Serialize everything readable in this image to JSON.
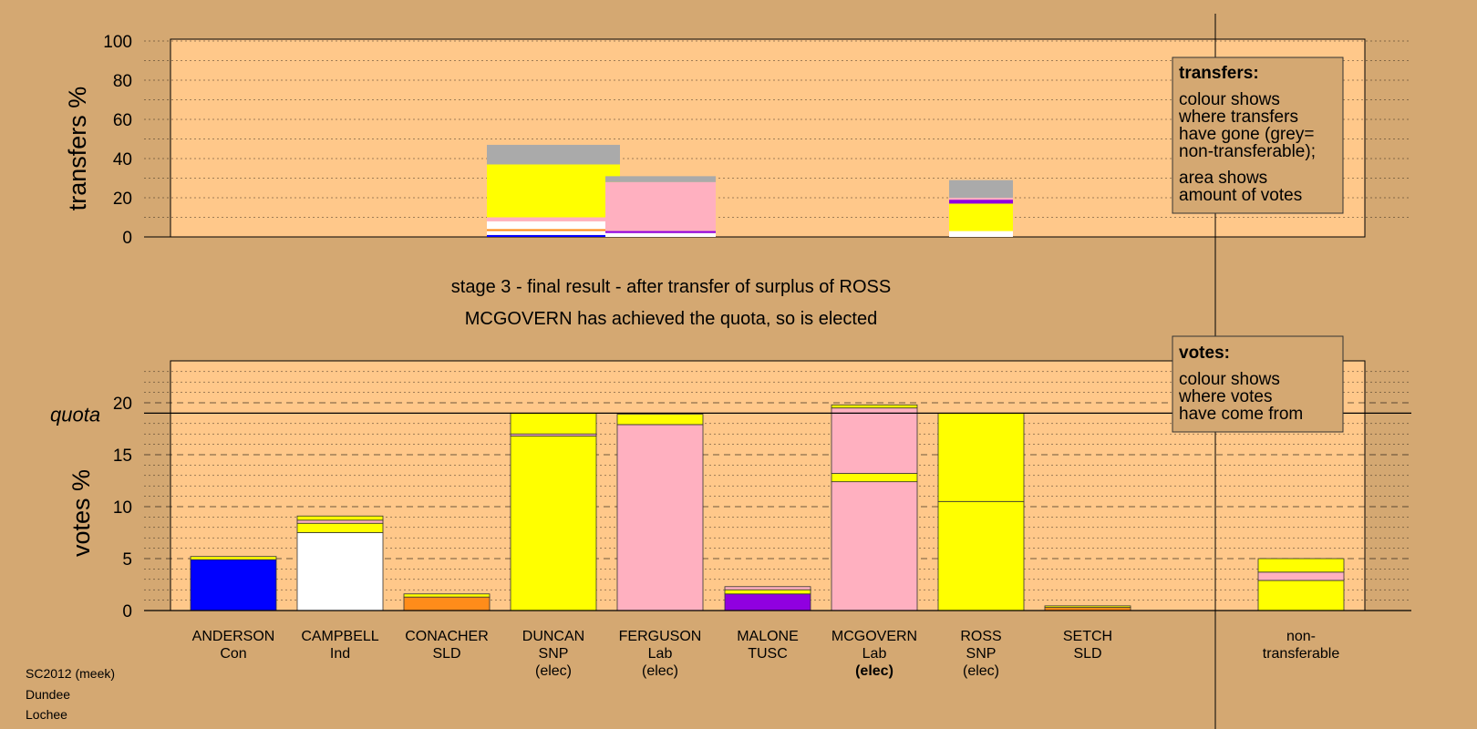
{
  "chart_data": [
    {
      "type": "bar",
      "stacked": true,
      "ylabel": "transfers %",
      "ylim": [
        0,
        100
      ],
      "yticks": [
        0,
        20,
        40,
        60,
        80,
        100
      ],
      "grid": true,
      "bars": [
        {
          "x_between": [
            "DUNCAN",
            "FERGUSON"
          ],
          "segments": [
            {
              "color": "#0000ff",
              "from": 0,
              "to": 1
            },
            {
              "color": "#ffffff",
              "from": 1,
              "to": 3
            },
            {
              "color": "#ff8c1a",
              "from": 3,
              "to": 4
            },
            {
              "color": "#ffffff",
              "from": 4,
              "to": 8
            },
            {
              "color": "#ffb0c0",
              "from": 8,
              "to": 10
            },
            {
              "color": "#ffff00",
              "from": 10,
              "to": 37
            },
            {
              "color": "#aaaaaa",
              "from": 37,
              "to": 47
            }
          ]
        },
        {
          "x_between": [
            "FERGUSON",
            "MCGOVERN"
          ],
          "segments": [
            {
              "color": "#ffffff",
              "from": 0,
              "to": 2
            },
            {
              "color": "#9000e0",
              "from": 2,
              "to": 3
            },
            {
              "color": "#ffb0c0",
              "from": 3,
              "to": 28
            },
            {
              "color": "#aaaaaa",
              "from": 28,
              "to": 31
            }
          ]
        },
        {
          "x": "ROSS",
          "segments": [
            {
              "color": "#ffffff",
              "from": 0,
              "to": 3
            },
            {
              "color": "#ffff00",
              "from": 3,
              "to": 17
            },
            {
              "color": "#9000e0",
              "from": 17,
              "to": 19
            },
            {
              "color": "#ffb0c0",
              "from": 19,
              "to": 20
            },
            {
              "color": "#aaaaaa",
              "from": 20,
              "to": 29
            }
          ]
        }
      ]
    },
    {
      "type": "bar",
      "stacked": true,
      "ylabel": "votes %",
      "ylim": [
        0,
        24
      ],
      "yticks": [
        0,
        5,
        10,
        15,
        20
      ],
      "quota": 19,
      "quota_label": "quota",
      "grid": true,
      "categories": [
        "ANDERSON",
        "CAMPBELL",
        "CONACHER",
        "DUNCAN",
        "FERGUSON",
        "MALONE",
        "MCGOVERN",
        "ROSS",
        "SETCH",
        "non-transferable"
      ],
      "bars": [
        {
          "name": "ANDERSON",
          "party": "Con",
          "status": "",
          "segments": [
            {
              "color": "#0000ff",
              "value": 4.9
            },
            {
              "color": "#ffff00",
              "value": 0.3
            }
          ]
        },
        {
          "name": "CAMPBELL",
          "party": "Ind",
          "status": "",
          "segments": [
            {
              "color": "#ffffff",
              "value": 7.5
            },
            {
              "color": "#ffff00",
              "value": 0.9
            },
            {
              "color": "#ffb0c0",
              "value": 0.3
            },
            {
              "color": "#ffff00",
              "value": 0.4
            }
          ]
        },
        {
          "name": "CONACHER",
          "party": "SLD",
          "status": "",
          "segments": [
            {
              "color": "#ff8c1a",
              "value": 1.3
            },
            {
              "color": "#ffff00",
              "value": 0.3
            }
          ]
        },
        {
          "name": "DUNCAN",
          "party": "SNP",
          "status": "(elec)",
          "segments": [
            {
              "color": "#ffff00",
              "value": 16.8
            },
            {
              "color": "#ffb0c0",
              "value": 0.2
            },
            {
              "color": "#ffff00",
              "value": 2.0
            }
          ]
        },
        {
          "name": "FERGUSON",
          "party": "Lab",
          "status": "(elec)",
          "segments": [
            {
              "color": "#ffb0c0",
              "value": 17.9
            },
            {
              "color": "#ffff00",
              "value": 1.0
            }
          ]
        },
        {
          "name": "MALONE",
          "party": "TUSC",
          "status": "",
          "segments": [
            {
              "color": "#9000e0",
              "value": 1.6
            },
            {
              "color": "#ffff00",
              "value": 0.4
            },
            {
              "color": "#ffb0c0",
              "value": 0.3
            }
          ]
        },
        {
          "name": "MCGOVERN",
          "party": "Lab",
          "status": "(elec)",
          "status_bold": true,
          "segments": [
            {
              "color": "#ffb0c0",
              "value": 12.4
            },
            {
              "color": "#ffff00",
              "value": 0.8
            },
            {
              "color": "#ffb0c0",
              "value": 6.3
            },
            {
              "color": "#ffff00",
              "value": 0.3
            }
          ]
        },
        {
          "name": "ROSS",
          "party": "SNP",
          "status": "(elec)",
          "segments": [
            {
              "color": "#ffff00",
              "value": 10.5
            },
            {
              "color": "#ffff00",
              "value": 8.5
            }
          ]
        },
        {
          "name": "SETCH",
          "party": "SLD",
          "status": "",
          "segments": [
            {
              "color": "#ff8c1a",
              "value": 0.3
            },
            {
              "color": "#ffff00",
              "value": 0.15
            }
          ]
        },
        {
          "name": "non-",
          "party": "transferable",
          "status": "",
          "segments": [
            {
              "color": "#ffff00",
              "value": 2.9
            },
            {
              "color": "#ffb0c0",
              "value": 0.8
            },
            {
              "color": "#ffff00",
              "value": 1.3
            }
          ]
        }
      ]
    }
  ],
  "stage_text": "stage 3 - final result - after transfer of surplus of ROSS",
  "elected_text": "MCGOVERN has achieved the quota, so is elected",
  "transfers_box": {
    "title": "transfers:",
    "lines1": [
      "colour shows",
      "where transfers",
      "have gone (grey=",
      "non-transferable);"
    ],
    "lines2": [
      "area shows",
      "amount of votes"
    ]
  },
  "votes_box": {
    "title": "votes:",
    "lines": [
      "colour shows",
      "where votes",
      "have come from"
    ]
  },
  "footer": [
    "SC2012 (meek)",
    "Dundee",
    "Lochee"
  ]
}
